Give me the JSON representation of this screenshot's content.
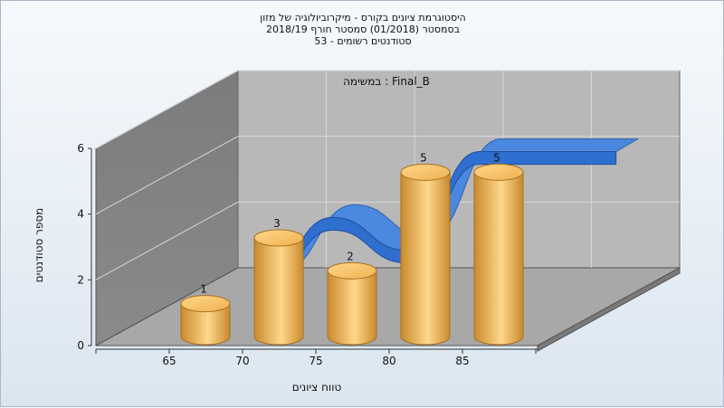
{
  "title_lines": [
    "היסטוגרמת ציונים בקורס - מיקרוביולוגיה של מזון",
    "בסמסטר  (01/2018)  סמסטר חורף 2018/19",
    "סטודנטים רשומים - 53"
  ],
  "chart_data": {
    "type": "bar",
    "annotation": "במשימה : Final_B",
    "categories": [
      "65",
      "70",
      "75",
      "80",
      "85"
    ],
    "values": [
      1,
      3,
      2,
      5,
      5
    ],
    "xlabel": "טווח ציונים",
    "ylabel": "מספר סטודנטים",
    "ylim": [
      0,
      6
    ],
    "yticks": [
      0,
      2,
      4,
      6
    ],
    "xticks": [
      "65",
      "70",
      "75",
      "80",
      "85"
    ],
    "grid": true,
    "legend": "none",
    "colors": {
      "bar": "#f0b050",
      "bar_dark": "#c98a2e",
      "bar_light": "#ffd88a",
      "ribbon": "#2f6fd0",
      "back_wall": "#b8b8b8",
      "side_wall": "#8a8a8a",
      "floor": "#a8a8a8"
    }
  }
}
